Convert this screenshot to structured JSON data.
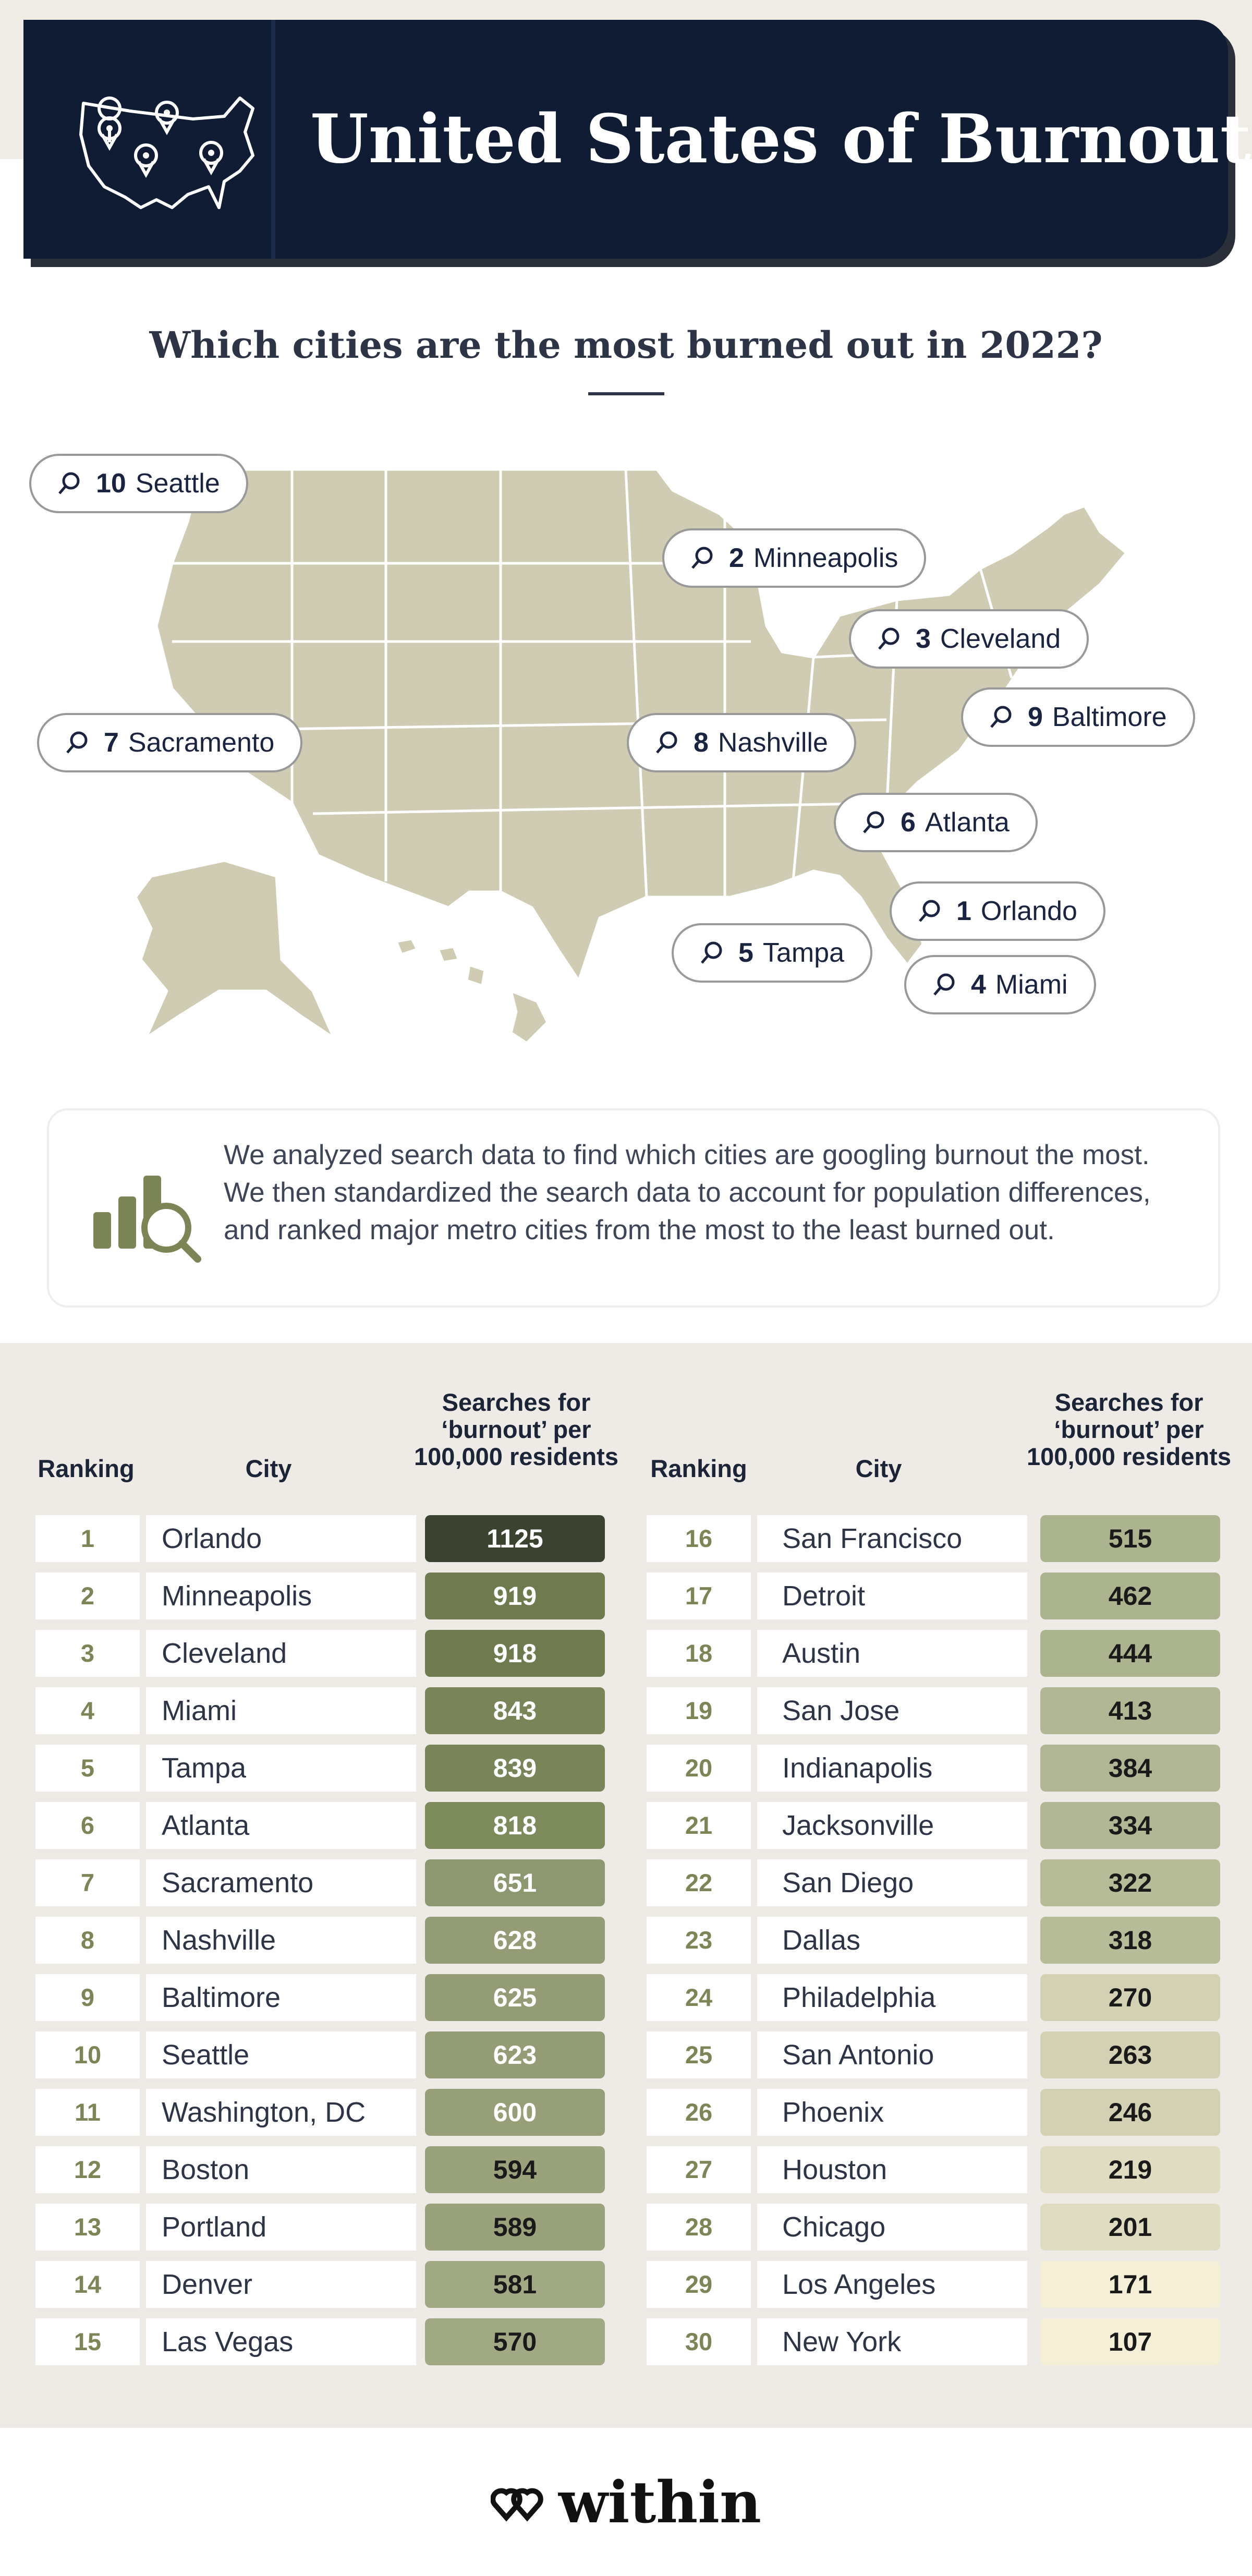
{
  "header": {
    "title": "United States of Burnout",
    "icon": "usa-map-pins-icon"
  },
  "subtitle": "Which cities are the most burned out in 2022?",
  "map": {
    "pins": [
      {
        "rank": "10",
        "city": "Seattle"
      },
      {
        "rank": "2",
        "city": "Minneapolis"
      },
      {
        "rank": "3",
        "city": "Cleveland"
      },
      {
        "rank": "9",
        "city": "Baltimore"
      },
      {
        "rank": "7",
        "city": "Sacramento"
      },
      {
        "rank": "8",
        "city": "Nashville"
      },
      {
        "rank": "6",
        "city": "Atlanta"
      },
      {
        "rank": "1",
        "city": "Orlando"
      },
      {
        "rank": "5",
        "city": "Tampa"
      },
      {
        "rank": "4",
        "city": "Miami"
      }
    ]
  },
  "info": {
    "icon": "chart-magnifier-icon",
    "text": "We analyzed search data to find which cities are googling burnout the most. We then standardized the search data to account for population differences, and ranked major metro cities from the most to the least burned out."
  },
  "table": {
    "headers": {
      "ranking": "Ranking",
      "city": "City",
      "value": "Searches for ‘burnout’ per 100,000 residents"
    }
  },
  "chart_data": {
    "type": "table",
    "title": "Which cities are the most burned out in 2022?",
    "columns": [
      "Ranking",
      "City",
      "Searches for ‘burnout’ per 100,000 residents"
    ],
    "rows": [
      {
        "rank": 1,
        "city": "Orlando",
        "value": 1125,
        "color": "#3b4230"
      },
      {
        "rank": 2,
        "city": "Minneapolis",
        "value": 919,
        "color": "#6f7a4f"
      },
      {
        "rank": 3,
        "city": "Cleveland",
        "value": 918,
        "color": "#6f7a4f"
      },
      {
        "rank": 4,
        "city": "Miami",
        "value": 843,
        "color": "#798458"
      },
      {
        "rank": 5,
        "city": "Tampa",
        "value": 839,
        "color": "#798458"
      },
      {
        "rank": 6,
        "city": "Atlanta",
        "value": 818,
        "color": "#7d8a5c"
      },
      {
        "rank": 7,
        "city": "Sacramento",
        "value": 651,
        "color": "#8e9870"
      },
      {
        "rank": 8,
        "city": "Nashville",
        "value": 628,
        "color": "#939c75"
      },
      {
        "rank": 9,
        "city": "Baltimore",
        "value": 625,
        "color": "#939c75"
      },
      {
        "rank": 10,
        "city": "Seattle",
        "value": 623,
        "color": "#939c75"
      },
      {
        "rank": 11,
        "city": "Washington, DC",
        "value": 600,
        "color": "#979f79"
      },
      {
        "rank": 12,
        "city": "Boston",
        "value": 594,
        "color": "#9aa27c"
      },
      {
        "rank": 13,
        "city": "Portland",
        "value": 589,
        "color": "#9aa27c"
      },
      {
        "rank": 14,
        "city": "Denver",
        "value": 581,
        "color": "#a1a984"
      },
      {
        "rank": 15,
        "city": "Las Vegas",
        "value": 570,
        "color": "#a1a984"
      },
      {
        "rank": 16,
        "city": "San Francisco",
        "value": 515,
        "color": "#acb38f"
      },
      {
        "rank": 17,
        "city": "Detroit",
        "value": 462,
        "color": "#acb38f"
      },
      {
        "rank": 18,
        "city": "Austin",
        "value": 444,
        "color": "#acb38f"
      },
      {
        "rank": 19,
        "city": "San Jose",
        "value": 413,
        "color": "#b1b794"
      },
      {
        "rank": 20,
        "city": "Indianapolis",
        "value": 384,
        "color": "#b1b794"
      },
      {
        "rank": 21,
        "city": "Jacksonville",
        "value": 334,
        "color": "#b1b794"
      },
      {
        "rank": 22,
        "city": "San Diego",
        "value": 322,
        "color": "#b6bb98"
      },
      {
        "rank": 23,
        "city": "Dallas",
        "value": 318,
        "color": "#b6bb98"
      },
      {
        "rank": 24,
        "city": "Philadelphia",
        "value": 270,
        "color": "#d3d0b3"
      },
      {
        "rank": 25,
        "city": "San Antonio",
        "value": 263,
        "color": "#d3d0b3"
      },
      {
        "rank": 26,
        "city": "Phoenix",
        "value": 246,
        "color": "#d3d0b3"
      },
      {
        "rank": 27,
        "city": "Houston",
        "value": 219,
        "color": "#e0dcc1"
      },
      {
        "rank": 28,
        "city": "Chicago",
        "value": 201,
        "color": "#e0dcc1"
      },
      {
        "rank": 29,
        "city": "Los Angeles",
        "value": 171,
        "color": "#f4efd6"
      },
      {
        "rank": 30,
        "city": "New York",
        "value": 107,
        "color": "#f4efd6"
      }
    ]
  },
  "footer": {
    "logo_icon": "within-hearts-icon",
    "logo_text": "within"
  }
}
